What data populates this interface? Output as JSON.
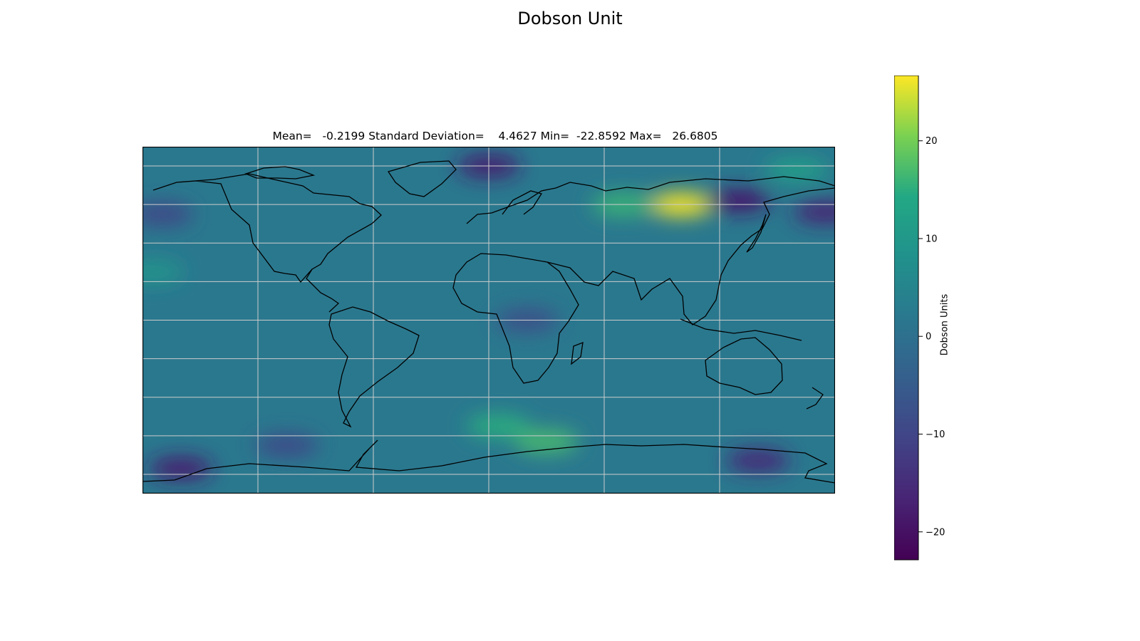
{
  "figure": {
    "title": "Dobson Unit",
    "subtitle": "Mean=   -0.2199 Standard Deviation=    4.4627 Min=  -22.8592 Max=   26.6805"
  },
  "colorbar": {
    "label": "Dobson Units",
    "min": -22.8592,
    "max": 26.6805,
    "ticks": [
      20,
      10,
      0,
      -10,
      -20
    ],
    "tick_labels": [
      "20",
      "10",
      "0",
      "−10",
      "−20"
    ],
    "colormap": "viridis"
  },
  "map": {
    "projection": "plate-carree",
    "lon_range": [
      -180,
      180
    ],
    "lat_range": [
      -90,
      90
    ],
    "gridlines": true,
    "grid_lons": [
      -120,
      -60,
      0,
      60,
      120
    ],
    "grid_lats": [
      -80,
      -60,
      -40,
      -20,
      0,
      20,
      40,
      60,
      80
    ],
    "coastlines": true
  },
  "chart_data": {
    "type": "heatmap",
    "title": "Dobson Unit",
    "subtitle": "Mean=   -0.2199 Standard Deviation=    4.4627 Min=  -22.8592 Max=   26.6805",
    "value_range": [
      -22.8592,
      26.6805
    ],
    "background_value": 2,
    "features": [
      {
        "lon": 100,
        "lat": 60,
        "value": 26.7
      },
      {
        "lon": 70,
        "lat": 60,
        "value": 16
      },
      {
        "lon": 0,
        "lat": 80,
        "value": -18
      },
      {
        "lon": 130,
        "lat": 62,
        "value": -19
      },
      {
        "lon": 175,
        "lat": 56,
        "value": -17
      },
      {
        "lon": 160,
        "lat": 78,
        "value": 12
      },
      {
        "lon": -170,
        "lat": 55,
        "value": -10
      },
      {
        "lon": 30,
        "lat": -63,
        "value": 17
      },
      {
        "lon": 5,
        "lat": -55,
        "value": 15
      },
      {
        "lon": -160,
        "lat": -77,
        "value": -18
      },
      {
        "lon": 140,
        "lat": -73,
        "value": -16
      },
      {
        "lon": -175,
        "lat": 25,
        "value": 9
      },
      {
        "lon": 20,
        "lat": 0,
        "value": -8
      },
      {
        "lon": -105,
        "lat": -65,
        "value": -9
      }
    ]
  }
}
